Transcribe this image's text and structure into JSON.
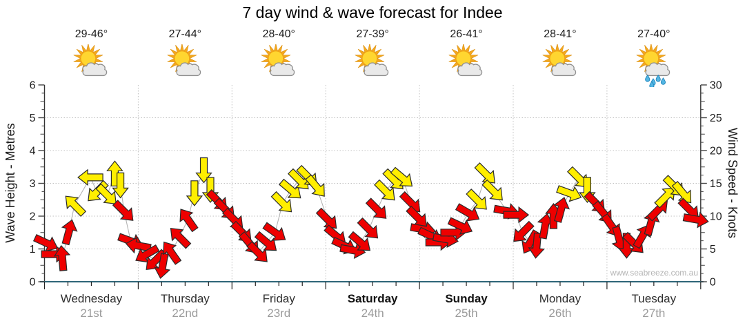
{
  "title": "7 day wind & wave forecast for Indee",
  "watermark": "www.seabreeze.com.au",
  "days": [
    {
      "name": "Wednesday",
      "date": "21st",
      "temp": "29-46°",
      "icon": "sun-cloud",
      "weekend": false
    },
    {
      "name": "Thursday",
      "date": "22nd",
      "temp": "27-44°",
      "icon": "sun-cloud",
      "weekend": false
    },
    {
      "name": "Friday",
      "date": "23rd",
      "temp": "28-40°",
      "icon": "sun-cloud",
      "weekend": false
    },
    {
      "name": "Saturday",
      "date": "24th",
      "temp": "27-39°",
      "icon": "sun-cloud",
      "weekend": true
    },
    {
      "name": "Sunday",
      "date": "25th",
      "temp": "26-41°",
      "icon": "sun-cloud",
      "weekend": true
    },
    {
      "name": "Monday",
      "date": "26th",
      "temp": "28-41°",
      "icon": "sun-cloud",
      "weekend": false
    },
    {
      "name": "Tuesday",
      "date": "27th",
      "temp": "27-40°",
      "icon": "sun-cloud-rain",
      "weekend": false
    }
  ],
  "axes": {
    "left": {
      "label": "Wave Height - Metres",
      "ticks": [
        0,
        1,
        2,
        3,
        4,
        5,
        6
      ],
      "range": [
        0,
        6
      ]
    },
    "right": {
      "label": "Wind Speed - Knots",
      "ticks": [
        0,
        5,
        10,
        15,
        20,
        25,
        30
      ],
      "range": [
        0,
        30
      ]
    }
  },
  "colors": {
    "arrow_red": "#ee0000",
    "arrow_yellow": "#ffee00",
    "arrow_outline": "#2b2b2b",
    "x_axis_line": "#2e6578",
    "y_axis_line": "#333333",
    "grid": "#c0c0c0",
    "connector": "#b3b3b3",
    "date_text": "#9b9b9b"
  },
  "chart_data": {
    "type": "scatter",
    "title": "7 day wind & wave forecast for Indee",
    "x_categories": [
      "Wednesday 21st",
      "Thursday 22nd",
      "Friday 23rd",
      "Saturday 24th",
      "Sunday 25th",
      "Monday 26th",
      "Tuesday 27th"
    ],
    "y_left": {
      "label": "Wave Height - Metres",
      "range": [
        0,
        6
      ],
      "gridlines": [
        1,
        2,
        3,
        4,
        5
      ]
    },
    "y_right": {
      "label": "Wind Speed - Knots",
      "range": [
        0,
        30
      ],
      "gridlines": [
        5,
        10,
        15,
        20,
        25
      ]
    },
    "legend": "arrow glyph = wind direction; red = lighter wind, yellow = stronger wind",
    "point_format": [
      "day_index",
      "fraction_of_day",
      "wind_knots",
      "direction_deg_clockwise_from_east",
      "color r=red y=yellow"
    ],
    "points": [
      [
        0,
        0.02,
        5.9,
        25,
        "r"
      ],
      [
        0,
        0.1,
        4.2,
        0,
        "r"
      ],
      [
        0,
        0.19,
        3.6,
        265,
        "r"
      ],
      [
        0,
        0.26,
        7.6,
        285,
        "r"
      ],
      [
        0,
        0.32,
        11.7,
        225,
        "y"
      ],
      [
        0,
        0.49,
        15.9,
        180,
        "y"
      ],
      [
        0,
        0.56,
        13.7,
        135,
        "y"
      ],
      [
        0,
        0.67,
        13.2,
        45,
        "y"
      ],
      [
        0,
        0.75,
        16.5,
        270,
        "y"
      ],
      [
        0,
        0.81,
        14.7,
        90,
        "y"
      ],
      [
        0,
        0.85,
        10.7,
        45,
        "r"
      ],
      [
        0,
        0.92,
        6.2,
        20,
        "r"
      ],
      [
        1,
        0.0,
        5.5,
        190,
        "r"
      ],
      [
        1,
        0.09,
        4.2,
        150,
        "r"
      ],
      [
        1,
        0.18,
        3.2,
        135,
        "r"
      ],
      [
        1,
        0.26,
        2.4,
        100,
        "r"
      ],
      [
        1,
        0.35,
        4.5,
        235,
        "r"
      ],
      [
        1,
        0.44,
        6.8,
        225,
        "r"
      ],
      [
        1,
        0.53,
        9.5,
        235,
        "r"
      ],
      [
        1,
        0.6,
        13.5,
        90,
        "y"
      ],
      [
        1,
        0.7,
        17.0,
        90,
        "y"
      ],
      [
        1,
        0.77,
        14.0,
        90,
        "y"
      ],
      [
        1,
        0.85,
        12.3,
        45,
        "r"
      ],
      [
        1,
        0.93,
        11.0,
        45,
        "r"
      ],
      [
        2,
        0.02,
        9.5,
        45,
        "r"
      ],
      [
        2,
        0.11,
        7.5,
        45,
        "r"
      ],
      [
        2,
        0.19,
        5.8,
        50,
        "r"
      ],
      [
        2,
        0.28,
        4.4,
        45,
        "r"
      ],
      [
        2,
        0.37,
        6.0,
        40,
        "r"
      ],
      [
        2,
        0.46,
        7.5,
        35,
        "r"
      ],
      [
        2,
        0.54,
        12.0,
        45,
        "y"
      ],
      [
        2,
        0.63,
        14.0,
        40,
        "y"
      ],
      [
        2,
        0.72,
        15.5,
        45,
        "y"
      ],
      [
        2,
        0.81,
        16.0,
        45,
        "y"
      ],
      [
        2,
        0.9,
        14.5,
        50,
        "y"
      ],
      [
        3,
        0.02,
        9.5,
        45,
        "r"
      ],
      [
        3,
        0.11,
        7.0,
        40,
        "r"
      ],
      [
        3,
        0.2,
        5.5,
        25,
        "r"
      ],
      [
        3,
        0.29,
        4.8,
        10,
        "r"
      ],
      [
        3,
        0.37,
        6.0,
        40,
        "r"
      ],
      [
        3,
        0.46,
        8.0,
        45,
        "r"
      ],
      [
        3,
        0.55,
        11.0,
        45,
        "r"
      ],
      [
        3,
        0.64,
        13.8,
        45,
        "y"
      ],
      [
        3,
        0.73,
        15.5,
        45,
        "y"
      ],
      [
        3,
        0.82,
        15.8,
        40,
        "y"
      ],
      [
        3,
        0.91,
        12.0,
        45,
        "r"
      ],
      [
        3,
        0.98,
        9.8,
        45,
        "r"
      ],
      [
        4,
        0.04,
        8.0,
        10,
        "r"
      ],
      [
        4,
        0.12,
        7.0,
        25,
        "r"
      ],
      [
        4,
        0.2,
        6.0,
        0,
        "r"
      ],
      [
        4,
        0.28,
        6.5,
        10,
        "r"
      ],
      [
        4,
        0.36,
        7.5,
        0,
        "r"
      ],
      [
        4,
        0.44,
        8.5,
        25,
        "r"
      ],
      [
        4,
        0.52,
        10.5,
        30,
        "r"
      ],
      [
        4,
        0.62,
        12.4,
        45,
        "y"
      ],
      [
        4,
        0.71,
        16.4,
        45,
        "y"
      ],
      [
        4,
        0.79,
        13.8,
        45,
        "y"
      ],
      [
        4,
        0.93,
        10.8,
        10,
        "r"
      ],
      [
        5,
        0.03,
        10.2,
        0,
        "r"
      ],
      [
        5,
        0.1,
        7.5,
        135,
        "r"
      ],
      [
        5,
        0.18,
        6.0,
        120,
        "r"
      ],
      [
        5,
        0.25,
        5.5,
        95,
        "r"
      ],
      [
        5,
        0.34,
        8.5,
        280,
        "r"
      ],
      [
        5,
        0.43,
        10.0,
        270,
        "r"
      ],
      [
        5,
        0.51,
        11.0,
        285,
        "r"
      ],
      [
        5,
        0.6,
        13.5,
        20,
        "y"
      ],
      [
        5,
        0.7,
        15.8,
        45,
        "y"
      ],
      [
        5,
        0.79,
        14.0,
        90,
        "y"
      ],
      [
        5,
        0.88,
        12.0,
        45,
        "r"
      ],
      [
        5,
        0.96,
        10.5,
        50,
        "r"
      ],
      [
        6,
        0.05,
        8.5,
        55,
        "r"
      ],
      [
        6,
        0.13,
        6.5,
        75,
        "r"
      ],
      [
        6,
        0.21,
        5.5,
        90,
        "r"
      ],
      [
        6,
        0.29,
        5.8,
        45,
        "r"
      ],
      [
        6,
        0.38,
        7.0,
        300,
        "r"
      ],
      [
        6,
        0.47,
        9.0,
        285,
        "r"
      ],
      [
        6,
        0.55,
        11.0,
        315,
        "r"
      ],
      [
        6,
        0.63,
        13.0,
        315,
        "y"
      ],
      [
        6,
        0.72,
        14.5,
        45,
        "y"
      ],
      [
        6,
        0.81,
        13.5,
        50,
        "y"
      ],
      [
        6,
        0.88,
        11.0,
        45,
        "r"
      ],
      [
        6,
        0.95,
        9.5,
        10,
        "r"
      ]
    ]
  }
}
